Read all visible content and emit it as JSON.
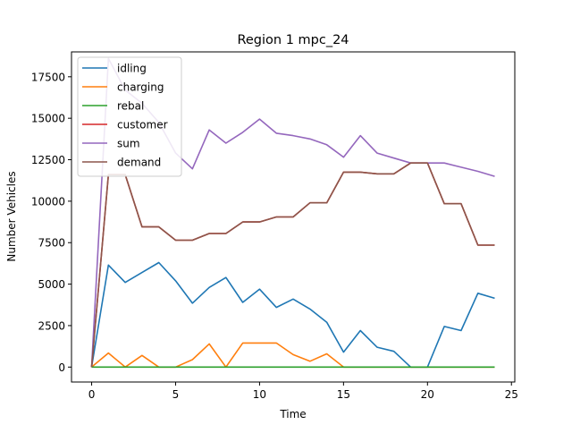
{
  "chart_data": {
    "type": "line",
    "title": "Region 1 mpc_24",
    "xlabel": "Time",
    "ylabel": "Number Vehicles",
    "xlim": [
      -1.2,
      25.2
    ],
    "ylim": [
      -900,
      19000
    ],
    "xticks": [
      0,
      5,
      10,
      15,
      20,
      25
    ],
    "yticks": [
      0,
      2500,
      5000,
      7500,
      10000,
      12500,
      15000,
      17500
    ],
    "ytick_labels": [
      "0",
      "2500",
      "5000",
      "7500",
      "10000",
      "12500",
      "15000",
      "17500"
    ],
    "legend_position": "upper-left",
    "x": [
      0,
      1,
      2,
      3,
      4,
      5,
      6,
      7,
      8,
      9,
      10,
      11,
      12,
      13,
      14,
      15,
      16,
      17,
      18,
      19,
      20,
      21,
      22,
      23,
      24
    ],
    "series": [
      {
        "name": "idling",
        "color": "#1f77b4",
        "values": [
          0,
          6150,
          5100,
          5700,
          6300,
          5200,
          3850,
          4800,
          5400,
          3900,
          4700,
          3600,
          4100,
          3500,
          2700,
          900,
          2200,
          1200,
          950,
          0,
          0,
          2450,
          2200,
          4450,
          4150
        ]
      },
      {
        "name": "charging",
        "color": "#ff7f0e",
        "values": [
          0,
          850,
          0,
          700,
          0,
          0,
          450,
          1400,
          0,
          1450,
          1450,
          1450,
          750,
          350,
          800,
          0,
          0,
          0,
          0,
          0,
          0,
          0,
          0,
          0,
          0
        ]
      },
      {
        "name": "rebal",
        "color": "#2ca02c",
        "values": [
          0,
          0,
          0,
          0,
          0,
          0,
          0,
          0,
          0,
          0,
          0,
          0,
          0,
          0,
          0,
          0,
          0,
          0,
          0,
          0,
          0,
          0,
          0,
          0,
          0
        ]
      },
      {
        "name": "customer",
        "color": "#d62728",
        "values": [
          0,
          11600,
          11600,
          8450,
          8450,
          7650,
          7650,
          8050,
          8050,
          8750,
          8750,
          9050,
          9050,
          9900,
          9900,
          11750,
          11750,
          11650,
          11650,
          12300,
          12300,
          9850,
          9850,
          7350,
          7350
        ]
      },
      {
        "name": "sum",
        "color": "#9467bd",
        "values": [
          0,
          18600,
          16700,
          15900,
          14750,
          12900,
          11950,
          14300,
          13500,
          14150,
          14950,
          14100,
          13950,
          13750,
          13400,
          12650,
          13950,
          12900,
          12600,
          12300,
          12300,
          12300,
          12050,
          11800,
          11500
        ]
      },
      {
        "name": "demand",
        "color": "#8c564b",
        "values": [
          0,
          11600,
          11600,
          8450,
          8450,
          7650,
          7650,
          8050,
          8050,
          8750,
          8750,
          9050,
          9050,
          9900,
          9900,
          11750,
          11750,
          11650,
          11650,
          12300,
          12300,
          9850,
          9850,
          7350,
          7350
        ]
      }
    ]
  }
}
